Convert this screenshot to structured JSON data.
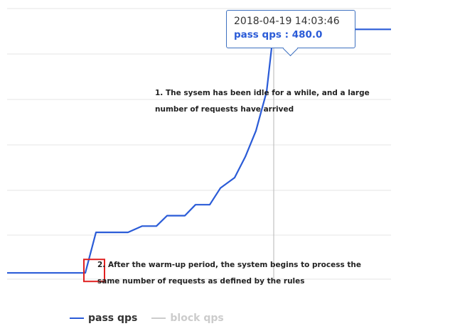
{
  "chart_data": {
    "type": "line",
    "series": [
      {
        "name": "pass qps",
        "color": "#2a5bd7",
        "points": [
          [
            0,
            12
          ],
          [
            11,
            12
          ],
          [
            12.5,
            90
          ],
          [
            17,
            90
          ],
          [
            19,
            102
          ],
          [
            21,
            102
          ],
          [
            22.5,
            122
          ],
          [
            25,
            122
          ],
          [
            26.5,
            143
          ],
          [
            28.5,
            143
          ],
          [
            30,
            175
          ],
          [
            32,
            195
          ],
          [
            33.5,
            235
          ],
          [
            35,
            285
          ],
          [
            36.5,
            360
          ],
          [
            37.5,
            480
          ],
          [
            54,
            480
          ]
        ]
      },
      {
        "name": "block qps",
        "color": "#cccccc",
        "points": []
      }
    ],
    "xlim": [
      0,
      54
    ],
    "ylim": [
      0,
      520
    ],
    "grid": true,
    "legend_position": "bottom",
    "tooltip": {
      "time": "2018-04-19 14:03:46",
      "label": "pass qps : ",
      "value": "480.0"
    },
    "highlighted_point": [
      37.5,
      480
    ],
    "annotations": [
      "2. After the warm-up period, the system begins to process the same number of requests as defined by the rules",
      "1. The sysem has been idle for a while, and a large number of requests have arrived"
    ]
  }
}
